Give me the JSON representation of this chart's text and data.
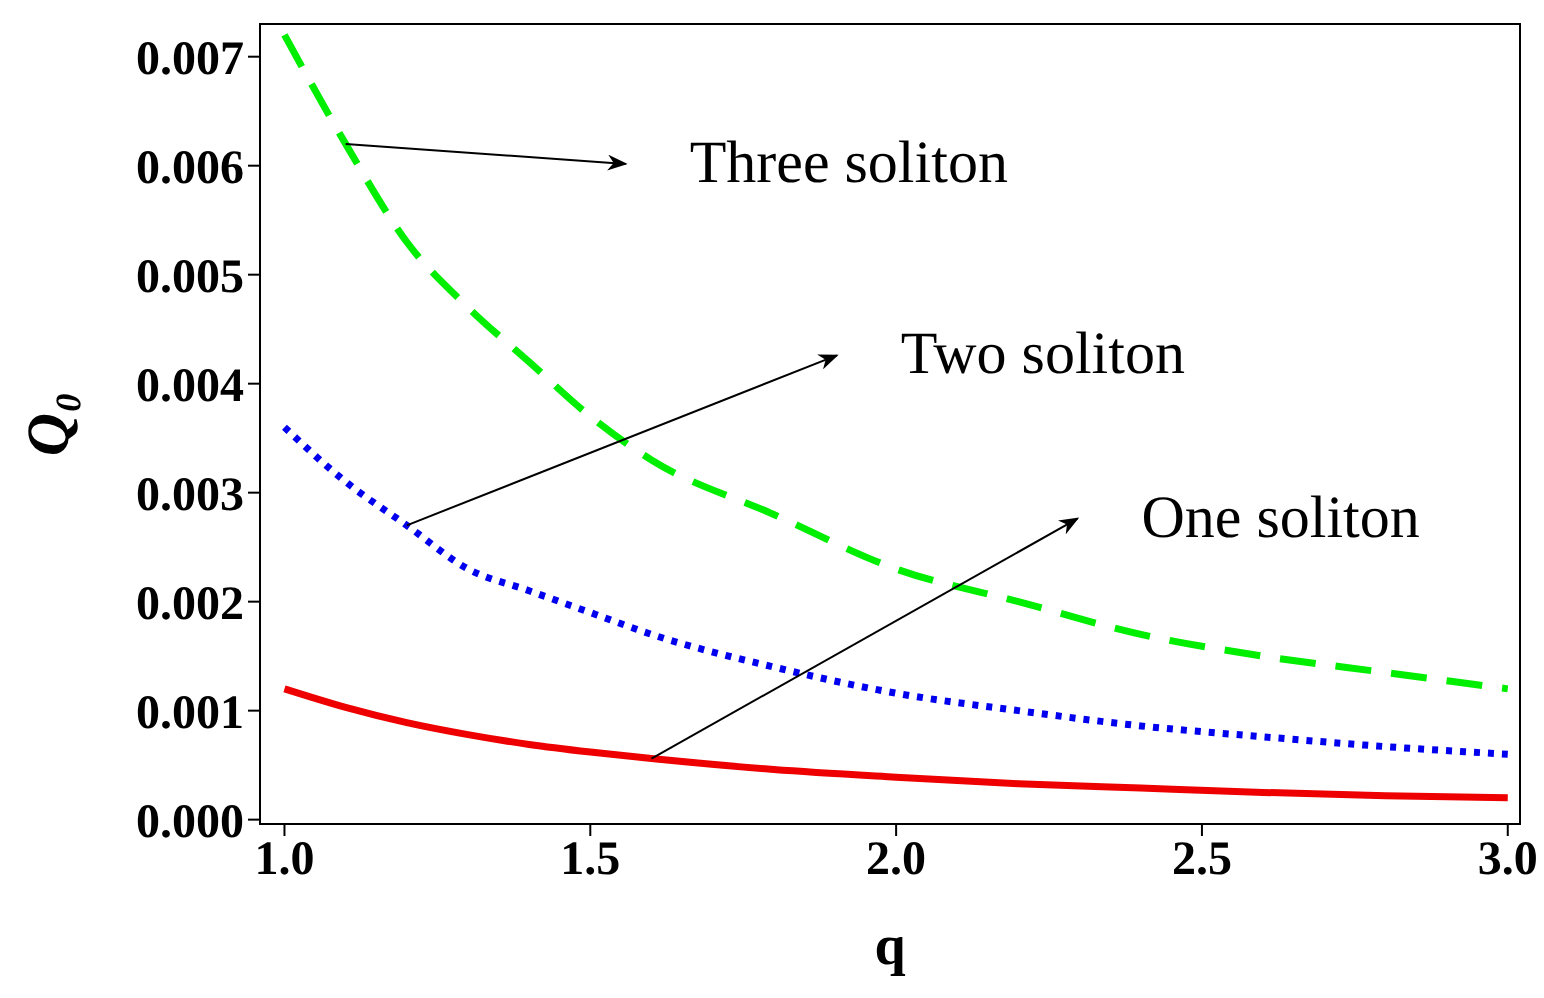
{
  "chart_data": {
    "type": "line",
    "xlabel": "q",
    "ylabel": "Q₀",
    "x": [
      1,
      1.1,
      1.2,
      1.3,
      1.4,
      1.5,
      1.6,
      1.8,
      2.0,
      2.2,
      2.4,
      2.6,
      2.8,
      3.0
    ],
    "series": [
      {
        "color": "#00ee00",
        "line_style": "dashed",
        "values": [
          0.0072,
          0.0062,
          0.0053,
          0.0047,
          0.0042,
          0.0037,
          0.0033,
          0.0028,
          0.0023,
          0.002,
          0.0017,
          0.0015,
          0.00135,
          0.0012
        ]
      },
      {
        "color": "#0000ee",
        "line_style": "dotted",
        "values": [
          0.0036,
          0.0031,
          0.0027,
          0.0023,
          0.0021,
          0.0019,
          0.0017,
          0.0014,
          0.00116,
          0.001,
          0.00086,
          0.00076,
          0.00067,
          0.0006
        ]
      },
      {
        "color": "#ee0000",
        "line_style": "solid",
        "values": [
          0.0012,
          0.00103,
          0.00089,
          0.00078,
          0.00069,
          0.00062,
          0.00056,
          0.00046,
          0.00039,
          0.00033,
          0.00029,
          0.00025,
          0.00022,
          0.0002
        ]
      }
    ],
    "xlim": [
      0.96,
      3.02
    ],
    "xticks": [
      {
        "value": 1,
        "label": "1.0"
      },
      {
        "value": 1.5,
        "label": "1.5"
      },
      {
        "value": 2,
        "label": "2.0"
      },
      {
        "value": 2.5,
        "label": "2.5"
      },
      {
        "value": 3,
        "label": "3.0"
      }
    ],
    "ylim": [
      -4e-05,
      0.0073
    ],
    "yticks": [
      {
        "value": 0,
        "label": "0.000"
      },
      {
        "value": 0.001,
        "label": "0.001"
      },
      {
        "value": 0.002,
        "label": "0.002"
      },
      {
        "value": 0.003,
        "label": "0.003"
      },
      {
        "value": 0.004,
        "label": "0.004"
      },
      {
        "value": 0.005,
        "label": "0.005"
      },
      {
        "value": 0.006,
        "label": "0.006"
      },
      {
        "value": 0.007,
        "label": "0.007"
      }
    ],
    "annotations": [
      {
        "text": "Three soliton",
        "x": 1.1,
        "y": 0.0062
      },
      {
        "text": "Two soliton",
        "x": 1.2,
        "y": 0.0027
      },
      {
        "text": "One soliton",
        "x": 1.6,
        "y": 0.00056
      }
    ],
    "grid": false,
    "marker": "none"
  }
}
